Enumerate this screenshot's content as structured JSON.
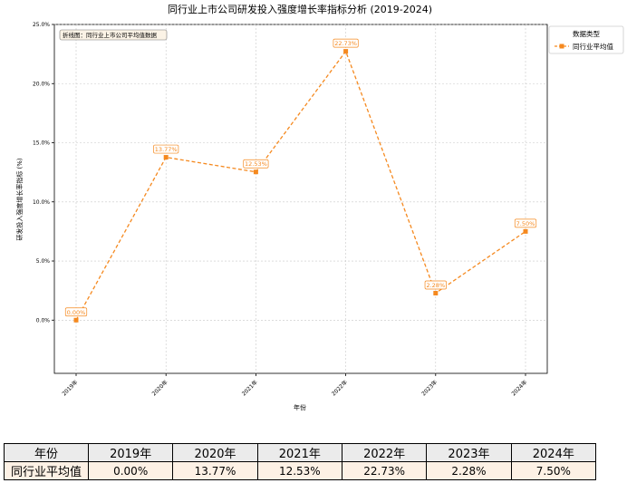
{
  "chart_data": {
    "type": "line",
    "title": "同行业上市公司研发投入强度增长率指标分析 (2019-2024)",
    "xlabel": "年份",
    "ylabel": "研发投入强度增长率指标 (%)",
    "categories": [
      "2019年",
      "2020年",
      "2021年",
      "2022年",
      "2023年",
      "2024年"
    ],
    "series": [
      {
        "name": "同行业平均值",
        "values": [
          0.0,
          13.77,
          12.53,
          22.73,
          2.28,
          7.5
        ],
        "color": "#f5891f",
        "style": "dashed",
        "marker": "square"
      }
    ],
    "data_labels": [
      "0.00%",
      "13.77%",
      "12.53%",
      "22.73%",
      "2.28%",
      "7.50%"
    ],
    "ylim": [
      -4.5,
      25.0
    ],
    "yticks": [
      0.0,
      5.0,
      10.0,
      15.0,
      20.0,
      25.0
    ],
    "ytick_labels": [
      "0.0%",
      "5.0%",
      "10.0%",
      "15.0%",
      "20.0%",
      "25.0%"
    ],
    "grid": true,
    "legend": {
      "title": "数据类型",
      "position": "outside-top-right"
    },
    "annotation": "折线图：同行业上市公司平均值数据"
  },
  "table": {
    "header_label": "年份",
    "years": [
      "2019年",
      "2020年",
      "2021年",
      "2022年",
      "2023年",
      "2024年"
    ],
    "row_label": "同行业平均值",
    "values": [
      "0.00%",
      "13.77%",
      "12.53%",
      "22.73%",
      "2.28%",
      "7.50%"
    ]
  }
}
